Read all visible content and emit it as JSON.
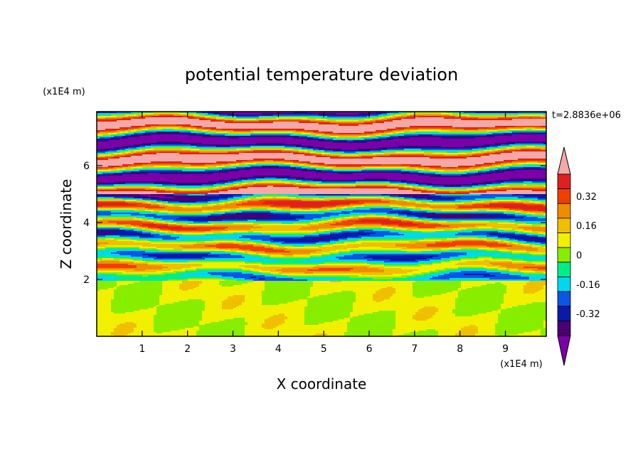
{
  "chart_data": {
    "type": "heatmap",
    "title": "potential temperature deviation",
    "xlabel": "X coordinate",
    "ylabel": "Z coordinate",
    "x_unit": "(x1E4 m)",
    "y_unit": "(x1E4 m)",
    "time_label": "t=2.8836e+06",
    "xlim": [
      0,
      9.9
    ],
    "ylim": [
      0,
      7.9
    ],
    "x_ticks": [
      "1",
      "2",
      "3",
      "4",
      "5",
      "6",
      "7",
      "8",
      "9"
    ],
    "y_ticks": [
      "2",
      "4",
      "6"
    ],
    "colorbar": {
      "levels": [
        -0.48,
        -0.4,
        -0.32,
        -0.24,
        -0.16,
        -0.08,
        0,
        0.08,
        0.16,
        0.24,
        0.32,
        0.4,
        0.48
      ],
      "tick_labels": [
        "0.32",
        "0.16",
        "0",
        "-0.16",
        "-0.32"
      ],
      "tick_values": [
        0.32,
        0.16,
        0,
        -0.16,
        -0.32
      ],
      "colors": [
        "#7a00a8",
        "#4a006e",
        "#0a1aa8",
        "#0a56e6",
        "#00d8f0",
        "#00ee88",
        "#88ee00",
        "#f0f000",
        "#f0c000",
        "#f08c00",
        "#f04000",
        "#e02020",
        "#f4a8a8"
      ]
    },
    "field_description": "layered horizontal bands: uniform green/light-green (near 0) below z=2, mixed blue-cyan-green-yellow-red bands between z=2 and z=5, alternating pink (high) and purple (low) bands above z=5"
  }
}
